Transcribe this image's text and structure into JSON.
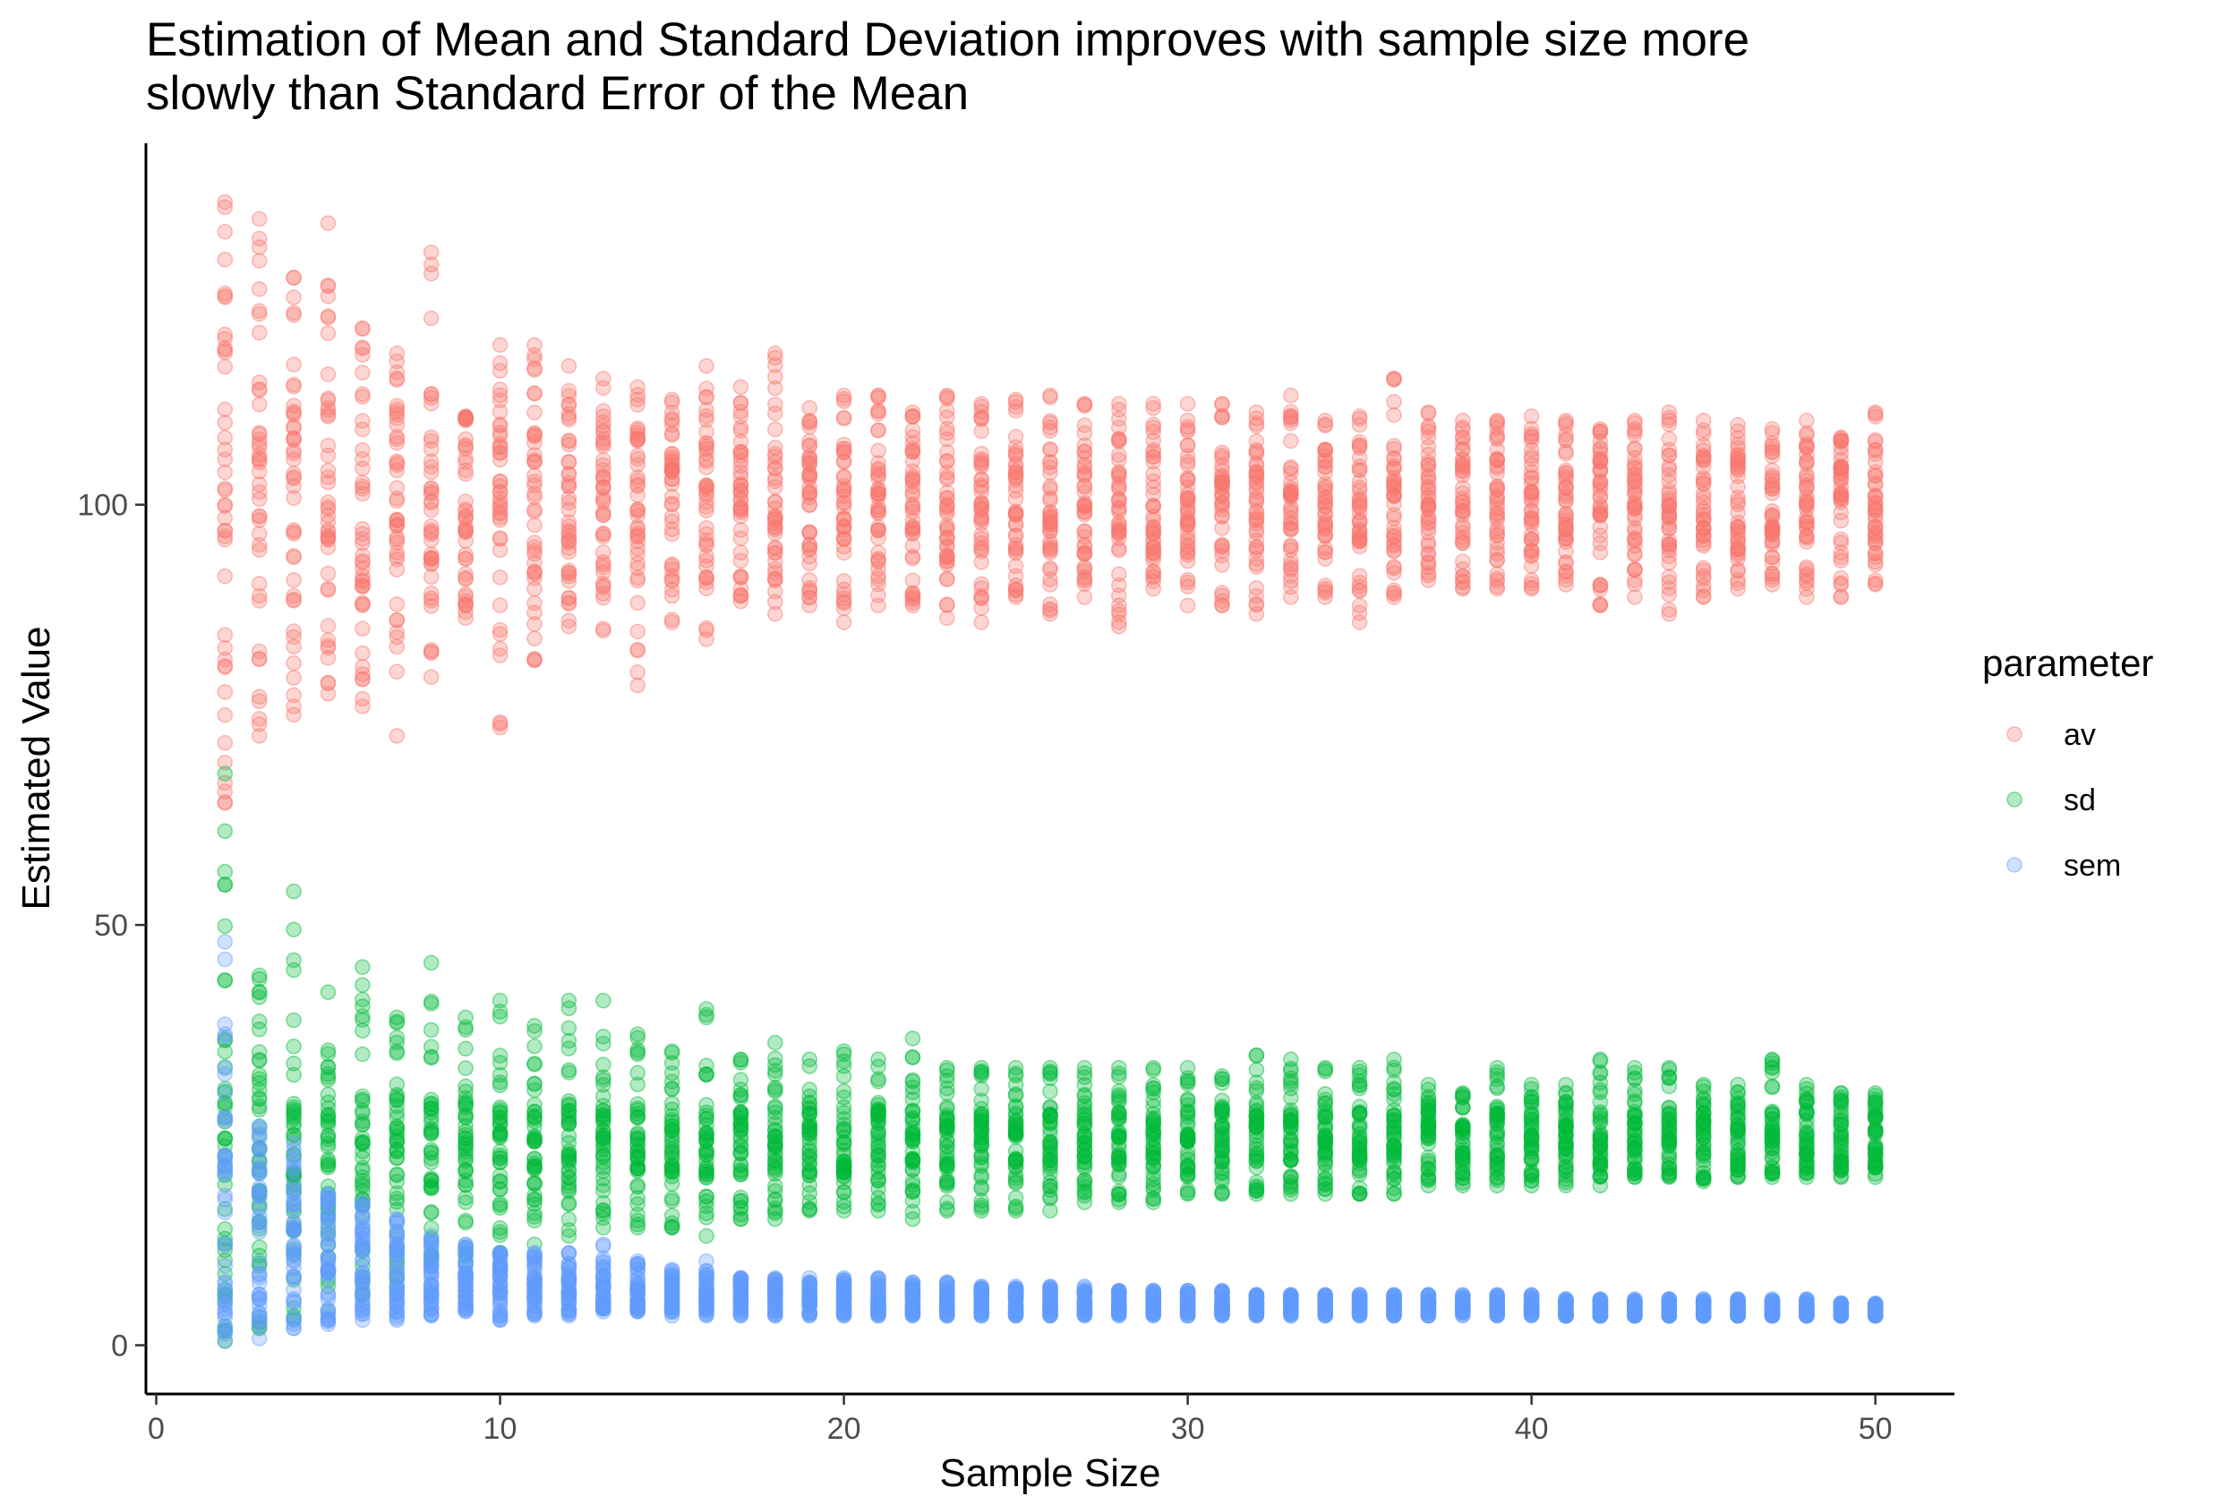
{
  "chart_data": {
    "type": "scatter",
    "title_lines": [
      "Estimation of Mean and Standard Deviation improves with sample size more",
      "slowly than Standard Error of the Mean"
    ],
    "xlabel": "Sample Size",
    "ylabel": "Estimated Value",
    "xlim": [
      -0.3,
      52.3
    ],
    "ylim": [
      -5.8,
      143
    ],
    "x_ticks": [
      0,
      10,
      20,
      30,
      40,
      50
    ],
    "x_tick_labels": [
      "0",
      "10",
      "20",
      "30",
      "40",
      "50"
    ],
    "y_ticks": [
      0,
      50,
      100
    ],
    "y_tick_labels": [
      "0",
      "50",
      "100"
    ],
    "grid": false,
    "point_alpha": 0.3,
    "legend": {
      "title": "parameter",
      "placement": "right",
      "entries": [
        "av",
        "sd",
        "sem"
      ]
    },
    "x_values": [
      2,
      3,
      4,
      5,
      6,
      7,
      8,
      9,
      10,
      11,
      12,
      13,
      14,
      15,
      16,
      17,
      18,
      19,
      20,
      21,
      22,
      23,
      24,
      25,
      26,
      27,
      28,
      29,
      30,
      31,
      32,
      33,
      34,
      35,
      36,
      37,
      38,
      39,
      40,
      41,
      42,
      43,
      44,
      45,
      46,
      47,
      48,
      49,
      50
    ],
    "series": [
      {
        "name": "av",
        "color": "#F8766D",
        "center": 100,
        "min": [
          64.5,
          72.5,
          75,
          77.5,
          76,
          72.5,
          79.5,
          86.5,
          73.5,
          81.5,
          85.5,
          85,
          78.5,
          86,
          84,
          88.5,
          87,
          88,
          86,
          88,
          88,
          86.5,
          86,
          89,
          87,
          89,
          85.5,
          90,
          88,
          88,
          87,
          89,
          89,
          86,
          89,
          91,
          90,
          90,
          90,
          90.5,
          88,
          89,
          87,
          89,
          90,
          90.5,
          89,
          89,
          90.5
        ],
        "max": [
          136,
          134,
          127,
          133.5,
          121,
          118,
          130,
          110.5,
          119,
          119,
          116.5,
          115,
          114,
          112.5,
          116.5,
          114,
          118,
          111.5,
          113,
          113,
          111,
          113,
          112,
          112.5,
          113,
          112,
          112,
          112,
          112,
          112,
          111,
          113,
          110,
          110.5,
          115,
          111,
          110,
          110,
          110.5,
          110,
          109,
          110,
          111,
          110,
          109.5,
          109,
          110,
          108,
          111
        ],
        "core_low": [
          80,
          84,
          86,
          87,
          88,
          89,
          90,
          90,
          90.5,
          91,
          91.5,
          92,
          92,
          92.5,
          92.5,
          93,
          93,
          93,
          93.5,
          93.5,
          93.5,
          93.5,
          94,
          94,
          94,
          94,
          94,
          94,
          94.5,
          94.5,
          94.5,
          94.5,
          94.5,
          94.5,
          94.5,
          94.5,
          94.5,
          94.5,
          94.5,
          94.5,
          94.5,
          94.5,
          94.5,
          94.5,
          94.5,
          94.5,
          94.5,
          94.5,
          94.5
        ],
        "core_high": [
          120,
          116,
          114,
          113,
          112,
          111,
          110,
          110,
          109.5,
          109,
          108.5,
          108,
          108,
          107.5,
          107.5,
          107,
          107,
          107,
          106.5,
          106.5,
          106.5,
          106.5,
          106,
          106,
          106,
          106,
          106,
          106,
          105.5,
          105.5,
          105.5,
          105.5,
          105.5,
          105.5,
          105.5,
          105.5,
          105.5,
          105.5,
          105.5,
          105.5,
          105.5,
          105.5,
          105.5,
          105.5,
          105.5,
          105.5,
          105.5,
          105.5,
          105.5
        ]
      },
      {
        "name": "sd",
        "color": "#00BA38",
        "center": 25,
        "min": [
          0.5,
          2,
          3,
          4,
          6,
          7,
          10,
          10,
          11,
          12,
          13,
          14,
          14,
          14,
          13,
          15,
          15,
          16,
          16,
          16,
          15,
          16,
          16,
          16,
          16,
          17,
          17,
          17,
          18,
          18,
          18,
          18,
          18,
          18,
          18,
          19,
          19,
          19,
          19,
          19,
          19,
          20,
          20,
          19.5,
          20,
          20,
          20,
          20,
          20
        ],
        "max": [
          68,
          44,
          54,
          42,
          45,
          39,
          45.5,
          39,
          41,
          38,
          41,
          41,
          37,
          35,
          40,
          34,
          36,
          34,
          35,
          34,
          36.5,
          33,
          33,
          33,
          33,
          33,
          33,
          33,
          33,
          32,
          34.5,
          34,
          33,
          33,
          34,
          31,
          30,
          33,
          31,
          31,
          34,
          33,
          33,
          31,
          31,
          34,
          31,
          30,
          30
        ],
        "core_low": [
          8,
          12,
          14,
          15,
          16,
          17,
          18,
          18,
          18.5,
          19,
          19,
          19.5,
          20,
          20,
          20,
          20,
          20,
          20.5,
          20.5,
          20.5,
          20.5,
          21,
          21,
          21,
          21,
          21,
          21,
          21,
          21,
          21.5,
          21.5,
          21.5,
          21.5,
          21.5,
          21.5,
          21.5,
          21.5,
          21.5,
          21.5,
          21.5,
          21.5,
          21.5,
          21.5,
          21.5,
          21.5,
          21.5,
          21.5,
          21.5,
          21.5
        ],
        "core_high": [
          38,
          34,
          32,
          31,
          30,
          30,
          29,
          29,
          29,
          29,
          29,
          28.5,
          28.5,
          28.5,
          28.5,
          28.5,
          28.5,
          28,
          28,
          28,
          28,
          28,
          28,
          28,
          28,
          28,
          28,
          28,
          28,
          28,
          28,
          28,
          28,
          28,
          28,
          28,
          28,
          28,
          28,
          28,
          28,
          28,
          28,
          28,
          28,
          28,
          28,
          28,
          28
        ]
      },
      {
        "name": "sem",
        "color": "#619CFF",
        "center": 5,
        "min": [
          0.5,
          0.8,
          2,
          2.5,
          3,
          3,
          3.5,
          4,
          3,
          3.5,
          3.5,
          4,
          4,
          3.5,
          3.5,
          3.5,
          3.5,
          3.5,
          3.5,
          3.5,
          3.5,
          3.5,
          3.5,
          3.5,
          3.5,
          3.5,
          3.5,
          3.5,
          3.5,
          3.5,
          3.5,
          3.5,
          3.5,
          3.5,
          3.5,
          3.5,
          3.5,
          3.5,
          3.5,
          3.5,
          3.5,
          3.5,
          3.5,
          3.5,
          3.5,
          3.5,
          3.5,
          3.5,
          3.5
        ],
        "max": [
          48,
          26,
          24,
          18,
          17,
          15,
          13,
          12,
          11,
          11,
          11,
          12,
          10,
          9,
          10,
          8,
          8,
          8,
          8,
          8,
          7.5,
          7.5,
          7,
          7,
          7,
          7,
          6.5,
          6.5,
          6.5,
          6.5,
          6,
          6,
          6,
          6,
          6,
          6,
          6,
          6,
          6,
          5.5,
          5.5,
          5.5,
          5.5,
          5.5,
          5.5,
          5.5,
          5.5,
          5,
          5
        ],
        "core_low": [
          4,
          5,
          5.5,
          5,
          5,
          5,
          5,
          5,
          5,
          5,
          4.5,
          4.5,
          4.5,
          4.5,
          4.5,
          4.5,
          4.5,
          4,
          4,
          4,
          4,
          4,
          4,
          4,
          4,
          4,
          4,
          4,
          4,
          4,
          4,
          4,
          4,
          4,
          4,
          4,
          4,
          4,
          4,
          3.5,
          3.5,
          3.5,
          3.5,
          3.5,
          3.5,
          3.5,
          3.5,
          3.5,
          3.5
        ],
        "core_high": [
          28,
          22,
          19,
          16,
          14,
          12.5,
          11,
          10.5,
          10,
          9.5,
          9,
          8.5,
          8,
          7.8,
          7.6,
          7.4,
          7.2,
          7,
          6.9,
          6.8,
          6.7,
          6.6,
          6.5,
          6.4,
          6.3,
          6.2,
          6.1,
          6,
          5.9,
          5.8,
          5.7,
          5.6,
          5.6,
          5.5,
          5.5,
          5.4,
          5.4,
          5.3,
          5.3,
          5.2,
          5.2,
          5.1,
          5.1,
          5,
          5,
          5,
          4.9,
          4.9,
          4.8
        ]
      }
    ]
  }
}
